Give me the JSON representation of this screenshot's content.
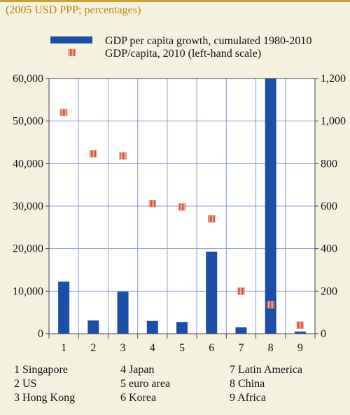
{
  "subtitle": "(2005 USD PPP; percentages)",
  "chart_data": {
    "type": "bar",
    "categories": [
      "1",
      "2",
      "3",
      "4",
      "5",
      "6",
      "7",
      "8",
      "9"
    ],
    "category_key": [
      "1 Singapore",
      "2 US",
      "3 Hong Kong",
      "4 Japan",
      "5 euro area",
      "6 Korea",
      "7 Latin America",
      "8 China",
      "9 Africa"
    ],
    "series": [
      {
        "name": "GDP per capita growth, cumulated 1980-2010",
        "kind": "bar",
        "axis": "right",
        "color": "#1a4ea8",
        "values": [
          245,
          62,
          198,
          60,
          55,
          386,
          30,
          1200,
          10
        ]
      },
      {
        "name": "GDP/capita, 2010 (left-hand scale)",
        "kind": "marker",
        "axis": "left",
        "color": "#c64a3a",
        "values": [
          52000,
          42300,
          41800,
          30600,
          29800,
          27000,
          10000,
          6800,
          2000
        ]
      }
    ],
    "left_axis": {
      "ticks": [
        "0",
        "10,000",
        "20,000",
        "30,000",
        "40,000",
        "50,000",
        "60,000"
      ],
      "range": [
        0,
        60000
      ]
    },
    "right_axis": {
      "ticks": [
        "0",
        "200",
        "400",
        "600",
        "800",
        "1,000",
        "1,200"
      ],
      "range": [
        0,
        1200
      ]
    },
    "grid": true,
    "legend_position": "top"
  }
}
